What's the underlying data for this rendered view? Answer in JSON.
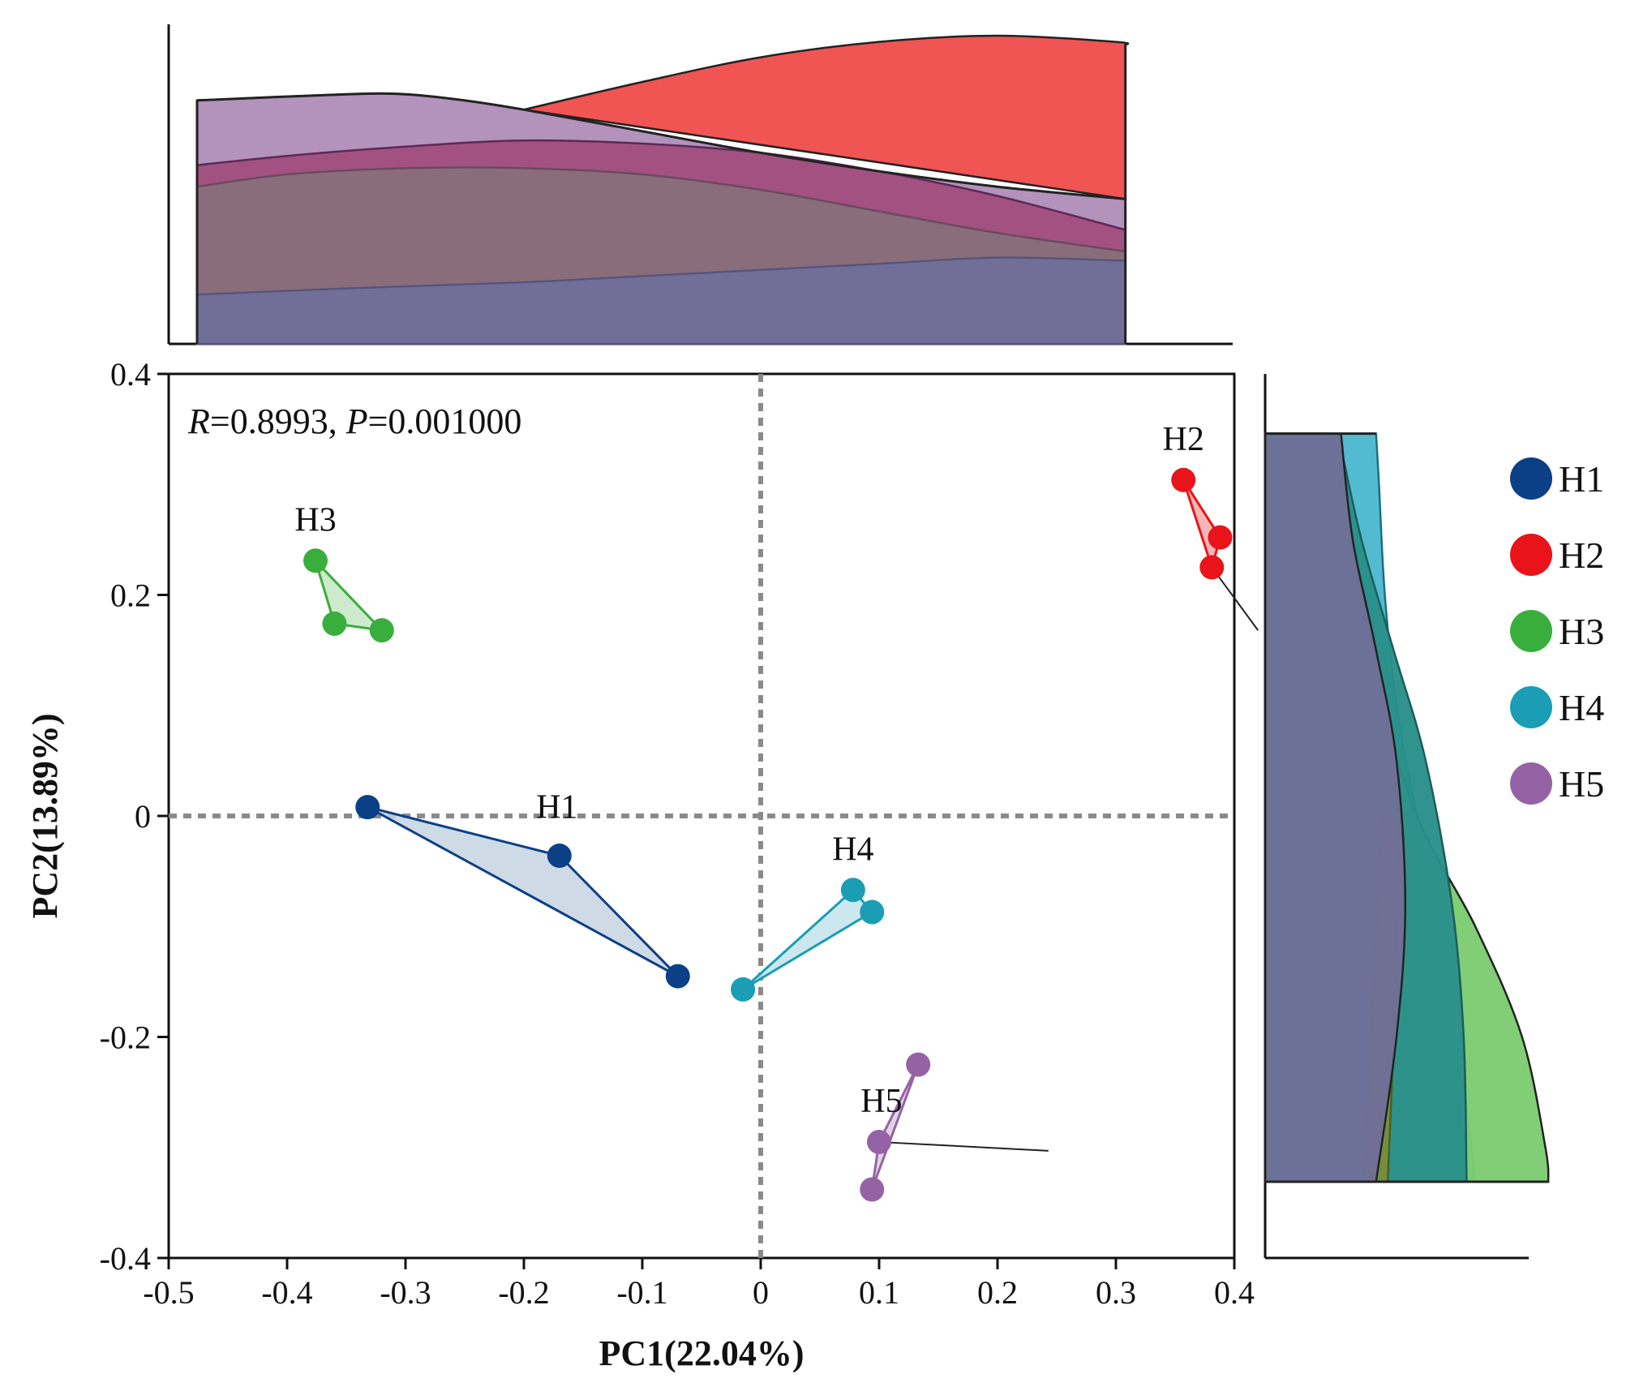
{
  "chart_data": {
    "type": "scatter",
    "subtype": "PCoA with marginal density plots",
    "xlabel": "PC1(22.04%)",
    "ylabel": "PC2(13.89%)",
    "xlim": [
      -0.5,
      0.4
    ],
    "ylim": [
      -0.4,
      0.4
    ],
    "xticks": [
      -0.5,
      -0.4,
      -0.3,
      -0.2,
      -0.1,
      0,
      0.1,
      0.2,
      0.3,
      0.4
    ],
    "yticks": [
      -0.4,
      -0.2,
      0,
      0.2,
      0.4
    ],
    "xtick_labels": [
      "-0.5",
      "-0.4",
      "-0.3",
      "-0.2",
      "-0.1",
      "0",
      "0.1",
      "0.2",
      "0.3",
      "0.4"
    ],
    "ytick_labels": [
      "-0.4",
      "-0.2",
      "0",
      "0.2",
      "0.4"
    ],
    "reference_lines": {
      "x": 0,
      "y": 0,
      "style": "dotted"
    },
    "annotation": {
      "r_label": "R",
      "r_value": "=0.8993, ",
      "p_label": "P",
      "p_value": "=0.001000"
    },
    "legend_position": "right",
    "series": [
      {
        "name": "H1",
        "color": "#0b3f86",
        "fill": "#c7d3e3",
        "points": [
          [
            -0.332,
            0.008
          ],
          [
            -0.17,
            -0.036
          ],
          [
            -0.07,
            -0.145
          ]
        ],
        "label_at": [
          -0.172,
          -0.002
        ]
      },
      {
        "name": "H2",
        "color": "#e8141a",
        "fill": "#f2a9a9",
        "points": [
          [
            0.357,
            0.304
          ],
          [
            0.388,
            0.252
          ],
          [
            0.381,
            0.225
          ]
        ],
        "label_at": [
          0.357,
          0.331
        ]
      },
      {
        "name": "H3",
        "color": "#3aae3c",
        "fill": "#c6e6c3",
        "points": [
          [
            -0.376,
            0.231
          ],
          [
            -0.36,
            0.174
          ],
          [
            -0.32,
            0.168
          ]
        ],
        "label_at": [
          -0.376,
          0.258
        ]
      },
      {
        "name": "H4",
        "color": "#1a9db5",
        "fill": "#c3e3ea",
        "points": [
          [
            0.078,
            -0.067
          ],
          [
            0.094,
            -0.087
          ],
          [
            -0.015,
            -0.157
          ]
        ],
        "label_at": [
          0.078,
          -0.04
        ]
      },
      {
        "name": "H5",
        "color": "#9563a5",
        "fill": "#dccbe2",
        "points": [
          [
            0.133,
            -0.225
          ],
          [
            0.1,
            -0.295
          ],
          [
            0.094,
            -0.338
          ]
        ],
        "label_at": [
          0.102,
          -0.268
        ]
      }
    ],
    "connector_lines": [
      {
        "name": "H2",
        "from": [
          0.381,
          0.225
        ],
        "to": [
          0.42,
          0.168
        ]
      },
      {
        "name": "H5",
        "from": [
          0.1,
          -0.295
        ],
        "to": [
          0.243,
          -0.303
        ]
      }
    ],
    "marginal_x": {
      "x_range": [
        -0.476,
        0.308
      ],
      "layers": [
        {
          "name": "H5",
          "fill": "#b190bb",
          "stroke": "#222222",
          "x": [
            -0.476,
            -0.35,
            -0.3,
            -0.25,
            -0.2,
            -0.1,
            0,
            0.1,
            0.2,
            0.308
          ],
          "density": [
            0.79,
            0.81,
            0.81,
            0.79,
            0.76,
            0.69,
            0.62,
            0.56,
            0.51,
            0.47
          ]
        },
        {
          "name": "H2",
          "fill": "#f05150",
          "stroke": "#222222",
          "x": [
            -0.2,
            -0.1,
            0,
            0.1,
            0.2,
            0.3,
            0.308
          ],
          "density": [
            0.76,
            0.85,
            0.93,
            0.98,
            1.0,
            0.98,
            0.97
          ]
        },
        {
          "name": "H3",
          "fill": "#a2507e",
          "stroke": "#5a2a55",
          "x": [
            -0.476,
            -0.4,
            -0.3,
            -0.2,
            -0.1,
            0,
            0.1,
            0.2,
            0.308
          ],
          "density": [
            0.58,
            0.61,
            0.64,
            0.66,
            0.65,
            0.62,
            0.56,
            0.48,
            0.37
          ]
        },
        {
          "name": "H4",
          "fill": "#8a6e79",
          "stroke": "#6a4a60",
          "x": [
            -0.476,
            -0.4,
            -0.3,
            -0.2,
            -0.1,
            0,
            0.1,
            0.2,
            0.308
          ],
          "density": [
            0.51,
            0.55,
            0.57,
            0.57,
            0.55,
            0.5,
            0.43,
            0.36,
            0.3
          ]
        },
        {
          "name": "H1",
          "fill": "#706f98",
          "stroke": "#56557e",
          "x": [
            -0.476,
            -0.35,
            -0.2,
            -0.1,
            0,
            0.1,
            0.2,
            0.308
          ],
          "density": [
            0.16,
            0.18,
            0.2,
            0.22,
            0.24,
            0.26,
            0.28,
            0.27
          ]
        }
      ]
    },
    "marginal_y": {
      "y_range": [
        -0.331,
        0.346
      ],
      "layers": [
        {
          "name": "H4",
          "fill": "#4db9cf",
          "stroke": "#1a6f80",
          "y": [
            0.346,
            0.3,
            0.2,
            0.1,
            0.0,
            -0.08,
            -0.2,
            -0.331
          ],
          "density": [
            0.38,
            0.39,
            0.41,
            0.45,
            0.52,
            0.59,
            0.66,
            0.72
          ]
        },
        {
          "name": "H3",
          "fill": "#7dcc72",
          "stroke": "#222222",
          "y": [
            0.346,
            0.25,
            0.128,
            0.0,
            -0.1,
            -0.2,
            -0.3,
            -0.331
          ],
          "density": [
            0.21,
            0.27,
            0.37,
            0.52,
            0.72,
            0.88,
            0.96,
            0.97
          ]
        },
        {
          "name": "H2",
          "fill": "#2a8f8a",
          "stroke": "#1a5e5a",
          "y": [
            0.346,
            0.25,
            0.15,
            0.05,
            -0.08,
            -0.2,
            -0.331
          ],
          "density": [
            0.25,
            0.33,
            0.44,
            0.55,
            0.64,
            0.68,
            0.69
          ]
        },
        {
          "name": "H5",
          "fill": "#7a8c3c",
          "stroke": "#4a6020",
          "y": [
            0.0,
            -0.08,
            -0.2,
            -0.331
          ],
          "density": [
            0.46,
            0.45,
            0.44,
            0.42
          ]
        },
        {
          "name": "H1",
          "fill": "#706f98",
          "stroke": "#222222",
          "y": [
            0.346,
            0.25,
            0.15,
            0.05,
            -0.08,
            -0.2,
            -0.331
          ],
          "density": [
            0.26,
            0.3,
            0.38,
            0.45,
            0.48,
            0.45,
            0.38
          ]
        }
      ]
    }
  }
}
